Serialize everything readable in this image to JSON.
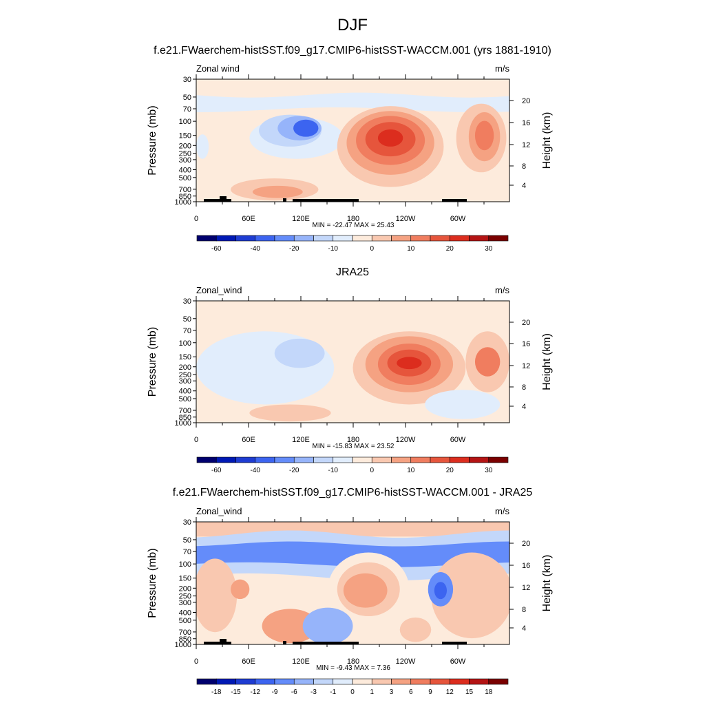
{
  "page_title": "DJF",
  "colors": {
    "cbar1": [
      "#00006e",
      "#0019b4",
      "#1e3cd2",
      "#3c64f0",
      "#648cfa",
      "#96b4fa",
      "#c3d7fa",
      "#e1edfc",
      "#fdebdc",
      "#f9c8b0",
      "#f5a282",
      "#f07d5f",
      "#e6553c",
      "#dc2d1e",
      "#b41414",
      "#7a0000"
    ],
    "cbar3": [
      "#00006e",
      "#0019b4",
      "#1e3cd2",
      "#3c64f0",
      "#648cfa",
      "#96b4fa",
      "#c3d7fa",
      "#e1edfc",
      "#fdebdc",
      "#f9c8b0",
      "#f5a282",
      "#f07d5f",
      "#e6553c",
      "#dc2d1e",
      "#b41414",
      "#7a0000"
    ]
  },
  "chart_data": [
    {
      "type": "heatmap",
      "title": "f.e21.FWaerchem-histSST.f09_g17.CMIP6-histSST-WACCM.001 (yrs 1881-1910)",
      "left_label": "Zonal wind",
      "right_label": "m/s",
      "ylabel": "Pressure (mb)",
      "ylabel_right": "Height (km)",
      "y_ticks": [
        "30",
        "50",
        "70",
        "100",
        "150",
        "200",
        "250",
        "300",
        "400",
        "500",
        "700",
        "850",
        "1000"
      ],
      "y_right_ticks": [
        "20",
        "16",
        "12",
        "8",
        "4"
      ],
      "x_ticks": [
        "0",
        "60E",
        "120E",
        "180",
        "120W",
        "60W"
      ],
      "minmax": "MIN = -22.47  MAX =  25.43",
      "colorbar_labels": [
        "-60",
        "-40",
        "-20",
        "-10",
        "0",
        "10",
        "20",
        "30"
      ]
    },
    {
      "type": "heatmap",
      "title": "JRA25",
      "left_label": "Zonal_wind",
      "right_label": "m/s",
      "ylabel": "Pressure (mb)",
      "ylabel_right": "Height (km)",
      "y_ticks": [
        "30",
        "50",
        "70",
        "100",
        "150",
        "200",
        "250",
        "300",
        "400",
        "500",
        "700",
        "850",
        "1000"
      ],
      "y_right_ticks": [
        "20",
        "16",
        "12",
        "8",
        "4"
      ],
      "x_ticks": [
        "0",
        "60E",
        "120E",
        "180",
        "120W",
        "60W"
      ],
      "minmax": "MIN = -15.83  MAX =  23.52",
      "colorbar_labels": [
        "-60",
        "-40",
        "-20",
        "-10",
        "0",
        "10",
        "20",
        "30"
      ]
    },
    {
      "type": "heatmap",
      "title": "f.e21.FWaerchem-histSST.f09_g17.CMIP6-histSST-WACCM.001 - JRA25",
      "left_label": "Zonal_wind",
      "right_label": "m/s",
      "ylabel": "Pressure (mb)",
      "ylabel_right": "Height (km)",
      "y_ticks": [
        "30",
        "50",
        "70",
        "100",
        "150",
        "200",
        "250",
        "300",
        "400",
        "500",
        "700",
        "850",
        "1000"
      ],
      "y_right_ticks": [
        "20",
        "16",
        "12",
        "8",
        "4"
      ],
      "x_ticks": [
        "0",
        "60E",
        "120E",
        "180",
        "120W",
        "60W"
      ],
      "minmax": "MIN =  -9.43  MAX =   7.36",
      "colorbar_labels": [
        "-18",
        "-15",
        "-12",
        "-9",
        "-6",
        "-3",
        "-1",
        "0",
        "1",
        "3",
        "6",
        "9",
        "12",
        "15",
        "18"
      ]
    }
  ]
}
